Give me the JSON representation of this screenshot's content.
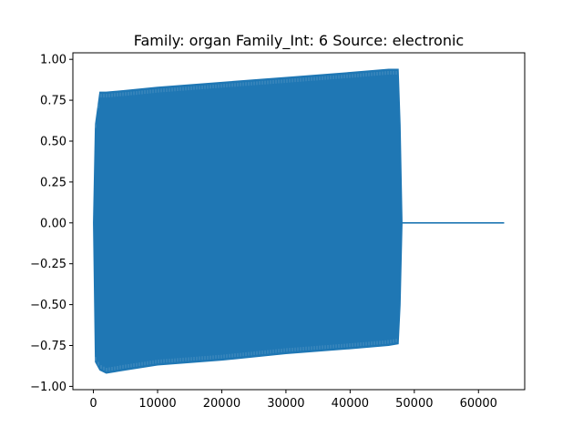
{
  "chart_data": {
    "type": "line",
    "title": "Family: organ Family_Int: 6 Source: electronic",
    "xlabel": "",
    "ylabel": "",
    "xlim": [
      -3200,
      67200
    ],
    "ylim": [
      -1.02,
      1.04
    ],
    "xticks": [
      0,
      10000,
      20000,
      30000,
      40000,
      50000,
      60000
    ],
    "xtick_labels": [
      "0",
      "10000",
      "20000",
      "30000",
      "40000",
      "50000",
      "60000"
    ],
    "yticks": [
      1.0,
      0.75,
      0.5,
      0.25,
      0.0,
      -0.25,
      -0.5,
      -0.75,
      -1.0
    ],
    "ytick_labels": [
      "1.00",
      "0.75",
      "0.50",
      "0.25",
      "0.00",
      "−0.25",
      "−0.50",
      "−0.75",
      "−1.00"
    ],
    "grid": false,
    "legend": "none",
    "series": [
      {
        "color": "#1f77b4",
        "envelope": [
          {
            "x": 0,
            "upper": 0.0,
            "lower": 0.0
          },
          {
            "x": 300,
            "upper": 0.6,
            "lower": -0.85
          },
          {
            "x": 1000,
            "upper": 0.8,
            "lower": -0.9
          },
          {
            "x": 2000,
            "upper": 0.8,
            "lower": -0.92
          },
          {
            "x": 5000,
            "upper": 0.81,
            "lower": -0.9
          },
          {
            "x": 10000,
            "upper": 0.83,
            "lower": -0.87
          },
          {
            "x": 20000,
            "upper": 0.86,
            "lower": -0.84
          },
          {
            "x": 30000,
            "upper": 0.89,
            "lower": -0.8
          },
          {
            "x": 40000,
            "upper": 0.92,
            "lower": -0.77
          },
          {
            "x": 46000,
            "upper": 0.94,
            "lower": -0.75
          },
          {
            "x": 47500,
            "upper": 0.94,
            "lower": -0.74
          },
          {
            "x": 47800,
            "upper": 0.6,
            "lower": -0.5
          },
          {
            "x": 48100,
            "upper": 0.0,
            "lower": 0.0
          }
        ],
        "tail": [
          [
            48100,
            0.0
          ],
          [
            64000,
            0.0
          ]
        ]
      }
    ]
  }
}
